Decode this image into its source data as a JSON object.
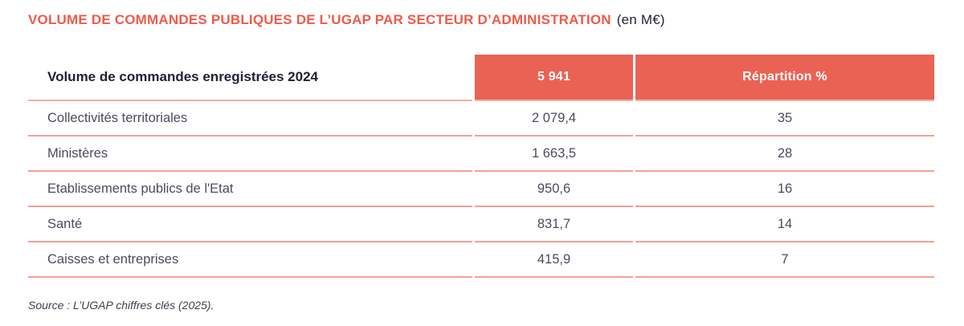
{
  "title": {
    "main": "VOLUME DE COMMANDES PUBLIQUES DE L’UGAP PAR SECTEUR D’ADMINISTRATION",
    "unit": "(en M€)"
  },
  "table": {
    "header": {
      "label": "Volume de commandes enregistrées 2024",
      "total": "5 941",
      "pct_label": "Répartition %"
    },
    "rows": [
      {
        "label": "Collectivités territoriales",
        "value": "2 079,4",
        "pct": "35"
      },
      {
        "label": "Ministères",
        "value": "1 663,5",
        "pct": "28"
      },
      {
        "label": "Etablissements publics de l'Etat",
        "value": "950,6",
        "pct": "16"
      },
      {
        "label": "Santé",
        "value": "831,7",
        "pct": "14"
      },
      {
        "label": "Caisses et entreprises",
        "value": "415,9",
        "pct": "7"
      }
    ]
  },
  "source": "Source : L’UGAP chiffres clés (2025).",
  "colors": {
    "accent_red": "#ea6254",
    "title_red": "#ee5a4b",
    "separator": "#f3a096",
    "dark_text": "#232038",
    "body_text": "#4b4b5e"
  },
  "chart_data": {
    "type": "table",
    "title": "VOLUME DE COMMANDES PUBLIQUES DE L’UGAP PAR SECTEUR D’ADMINISTRATION (en M€)",
    "columns": [
      "Volume de commandes enregistrées 2024",
      "5 941",
      "Répartition %"
    ],
    "rows": [
      [
        "Collectivités territoriales",
        2079.4,
        35
      ],
      [
        "Ministères",
        1663.5,
        28
      ],
      [
        "Etablissements publics de l'Etat",
        950.6,
        16
      ],
      [
        "Santé",
        831.7,
        14
      ],
      [
        "Caisses et entreprises",
        415.9,
        7
      ]
    ],
    "total_volume_2024_meur": 5941,
    "source": "Source : L’UGAP chiffres clés (2025)."
  }
}
